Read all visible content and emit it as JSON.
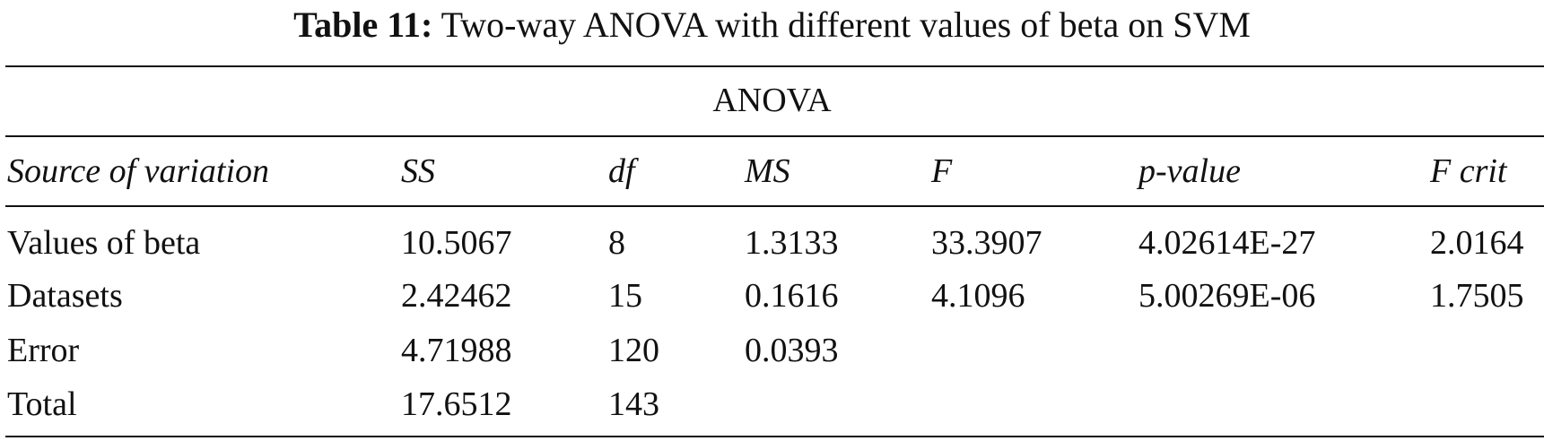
{
  "caption": {
    "label": "Table 11:",
    "text": "Two-way ANOVA with different values of beta on SVM"
  },
  "table": {
    "group_header": "ANOVA",
    "columns": [
      "Source of variation",
      "SS",
      "df",
      "MS",
      "F",
      "p-value",
      "F crit"
    ],
    "rows": [
      [
        "Values of beta",
        "10.5067",
        "8",
        "1.3133",
        "33.3907",
        "4.02614E-27",
        "2.0164"
      ],
      [
        "Datasets",
        "2.42462",
        "15",
        "0.1616",
        "4.1096",
        "5.00269E-06",
        "1.7505"
      ],
      [
        "Error",
        "4.71988",
        "120",
        "0.0393",
        "",
        "",
        ""
      ],
      [
        "Total",
        "17.6512",
        "143",
        "",
        "",
        "",
        ""
      ]
    ]
  }
}
